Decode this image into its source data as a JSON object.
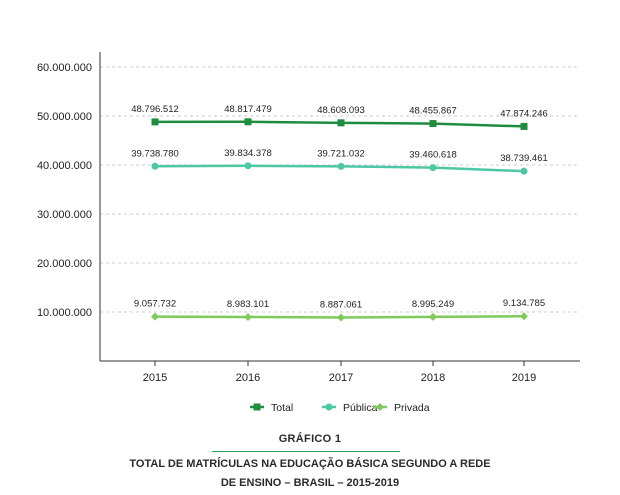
{
  "colors": {
    "total": "#1e8e3e",
    "publica": "#4cc9a4",
    "privada": "#7fca5a",
    "axis": "#333333",
    "grid": "#cccccc",
    "caption_rule": "#2e9e5b"
  },
  "caption": {
    "label": "GRÁFICO 1",
    "title_line1": "TOTAL DE MATRÍCULAS NA EDUCAÇÃO BÁSICA SEGUNDO A REDE",
    "title_line2": "DE ENSINO – BRASIL – 2015-2019"
  },
  "chart_data": {
    "type": "line",
    "title": "",
    "xlabel": "",
    "ylabel": "",
    "x": [
      "2015",
      "2016",
      "2017",
      "2018",
      "2019"
    ],
    "ylim": [
      0,
      60000000
    ],
    "yticks": [
      10000000,
      20000000,
      30000000,
      40000000,
      50000000,
      60000000
    ],
    "ytick_labels": [
      "10.000.000",
      "20.000.000",
      "30.000.000",
      "40.000.000",
      "50.000.000",
      "60.000.000"
    ],
    "grid": "horizontal dashed",
    "legend_position": "bottom-center",
    "series": [
      {
        "name": "Total",
        "marker": "square",
        "values": [
          48796512,
          48817479,
          48608093,
          48455867,
          47874246
        ],
        "labels": [
          "48.796.512",
          "48.817.479",
          "48.608.093",
          "48.455.867",
          "47.874.246"
        ]
      },
      {
        "name": "Pública",
        "marker": "circle",
        "values": [
          39738780,
          39834378,
          39721032,
          39460618,
          38739461
        ],
        "labels": [
          "39.738.780",
          "39.834.378",
          "39.721.032",
          "39.460.618",
          "38.739.461"
        ]
      },
      {
        "name": "Privada",
        "marker": "diamond",
        "values": [
          9057732,
          8983101,
          8887061,
          8995249,
          9134785
        ],
        "labels": [
          "9.057.732",
          "8.983.101",
          "8.887.061",
          "8.995.249",
          "9.134.785"
        ]
      }
    ]
  }
}
